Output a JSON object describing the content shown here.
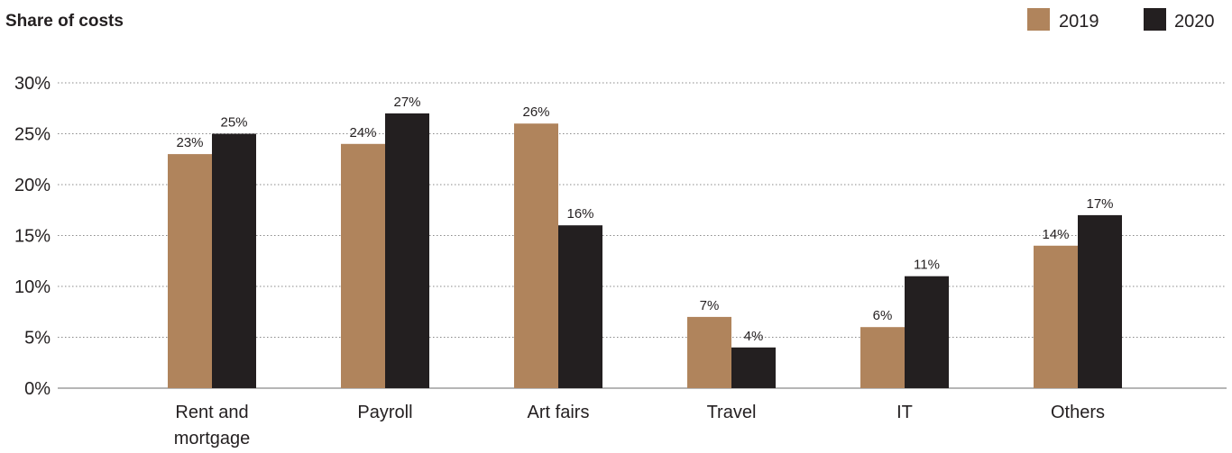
{
  "chart_data": {
    "type": "bar",
    "title": "Share of costs",
    "categories": [
      [
        "Rent and",
        "mortgage"
      ],
      [
        "Payroll"
      ],
      [
        "Art fairs"
      ],
      [
        "Travel"
      ],
      [
        "IT"
      ],
      [
        "Others"
      ]
    ],
    "series": [
      {
        "name": "2019",
        "color": "#b0845c",
        "values": [
          23,
          24,
          26,
          7,
          6,
          14
        ],
        "labels": [
          "23%",
          "24%",
          "26%",
          "7%",
          "6%",
          "14%"
        ]
      },
      {
        "name": "2020",
        "color": "#231f20",
        "values": [
          25,
          27,
          16,
          4,
          11,
          17
        ],
        "labels": [
          "25%",
          "27%",
          "16%",
          "4%",
          "11%",
          "17%"
        ]
      }
    ],
    "y_ticks": [
      0,
      5,
      10,
      15,
      20,
      25,
      30
    ],
    "y_tick_labels": [
      "0%",
      "5%",
      "10%",
      "15%",
      "20%",
      "25%",
      "30%"
    ],
    "ylim": [
      0,
      30
    ],
    "grid": true,
    "legend_position": "top-right"
  }
}
